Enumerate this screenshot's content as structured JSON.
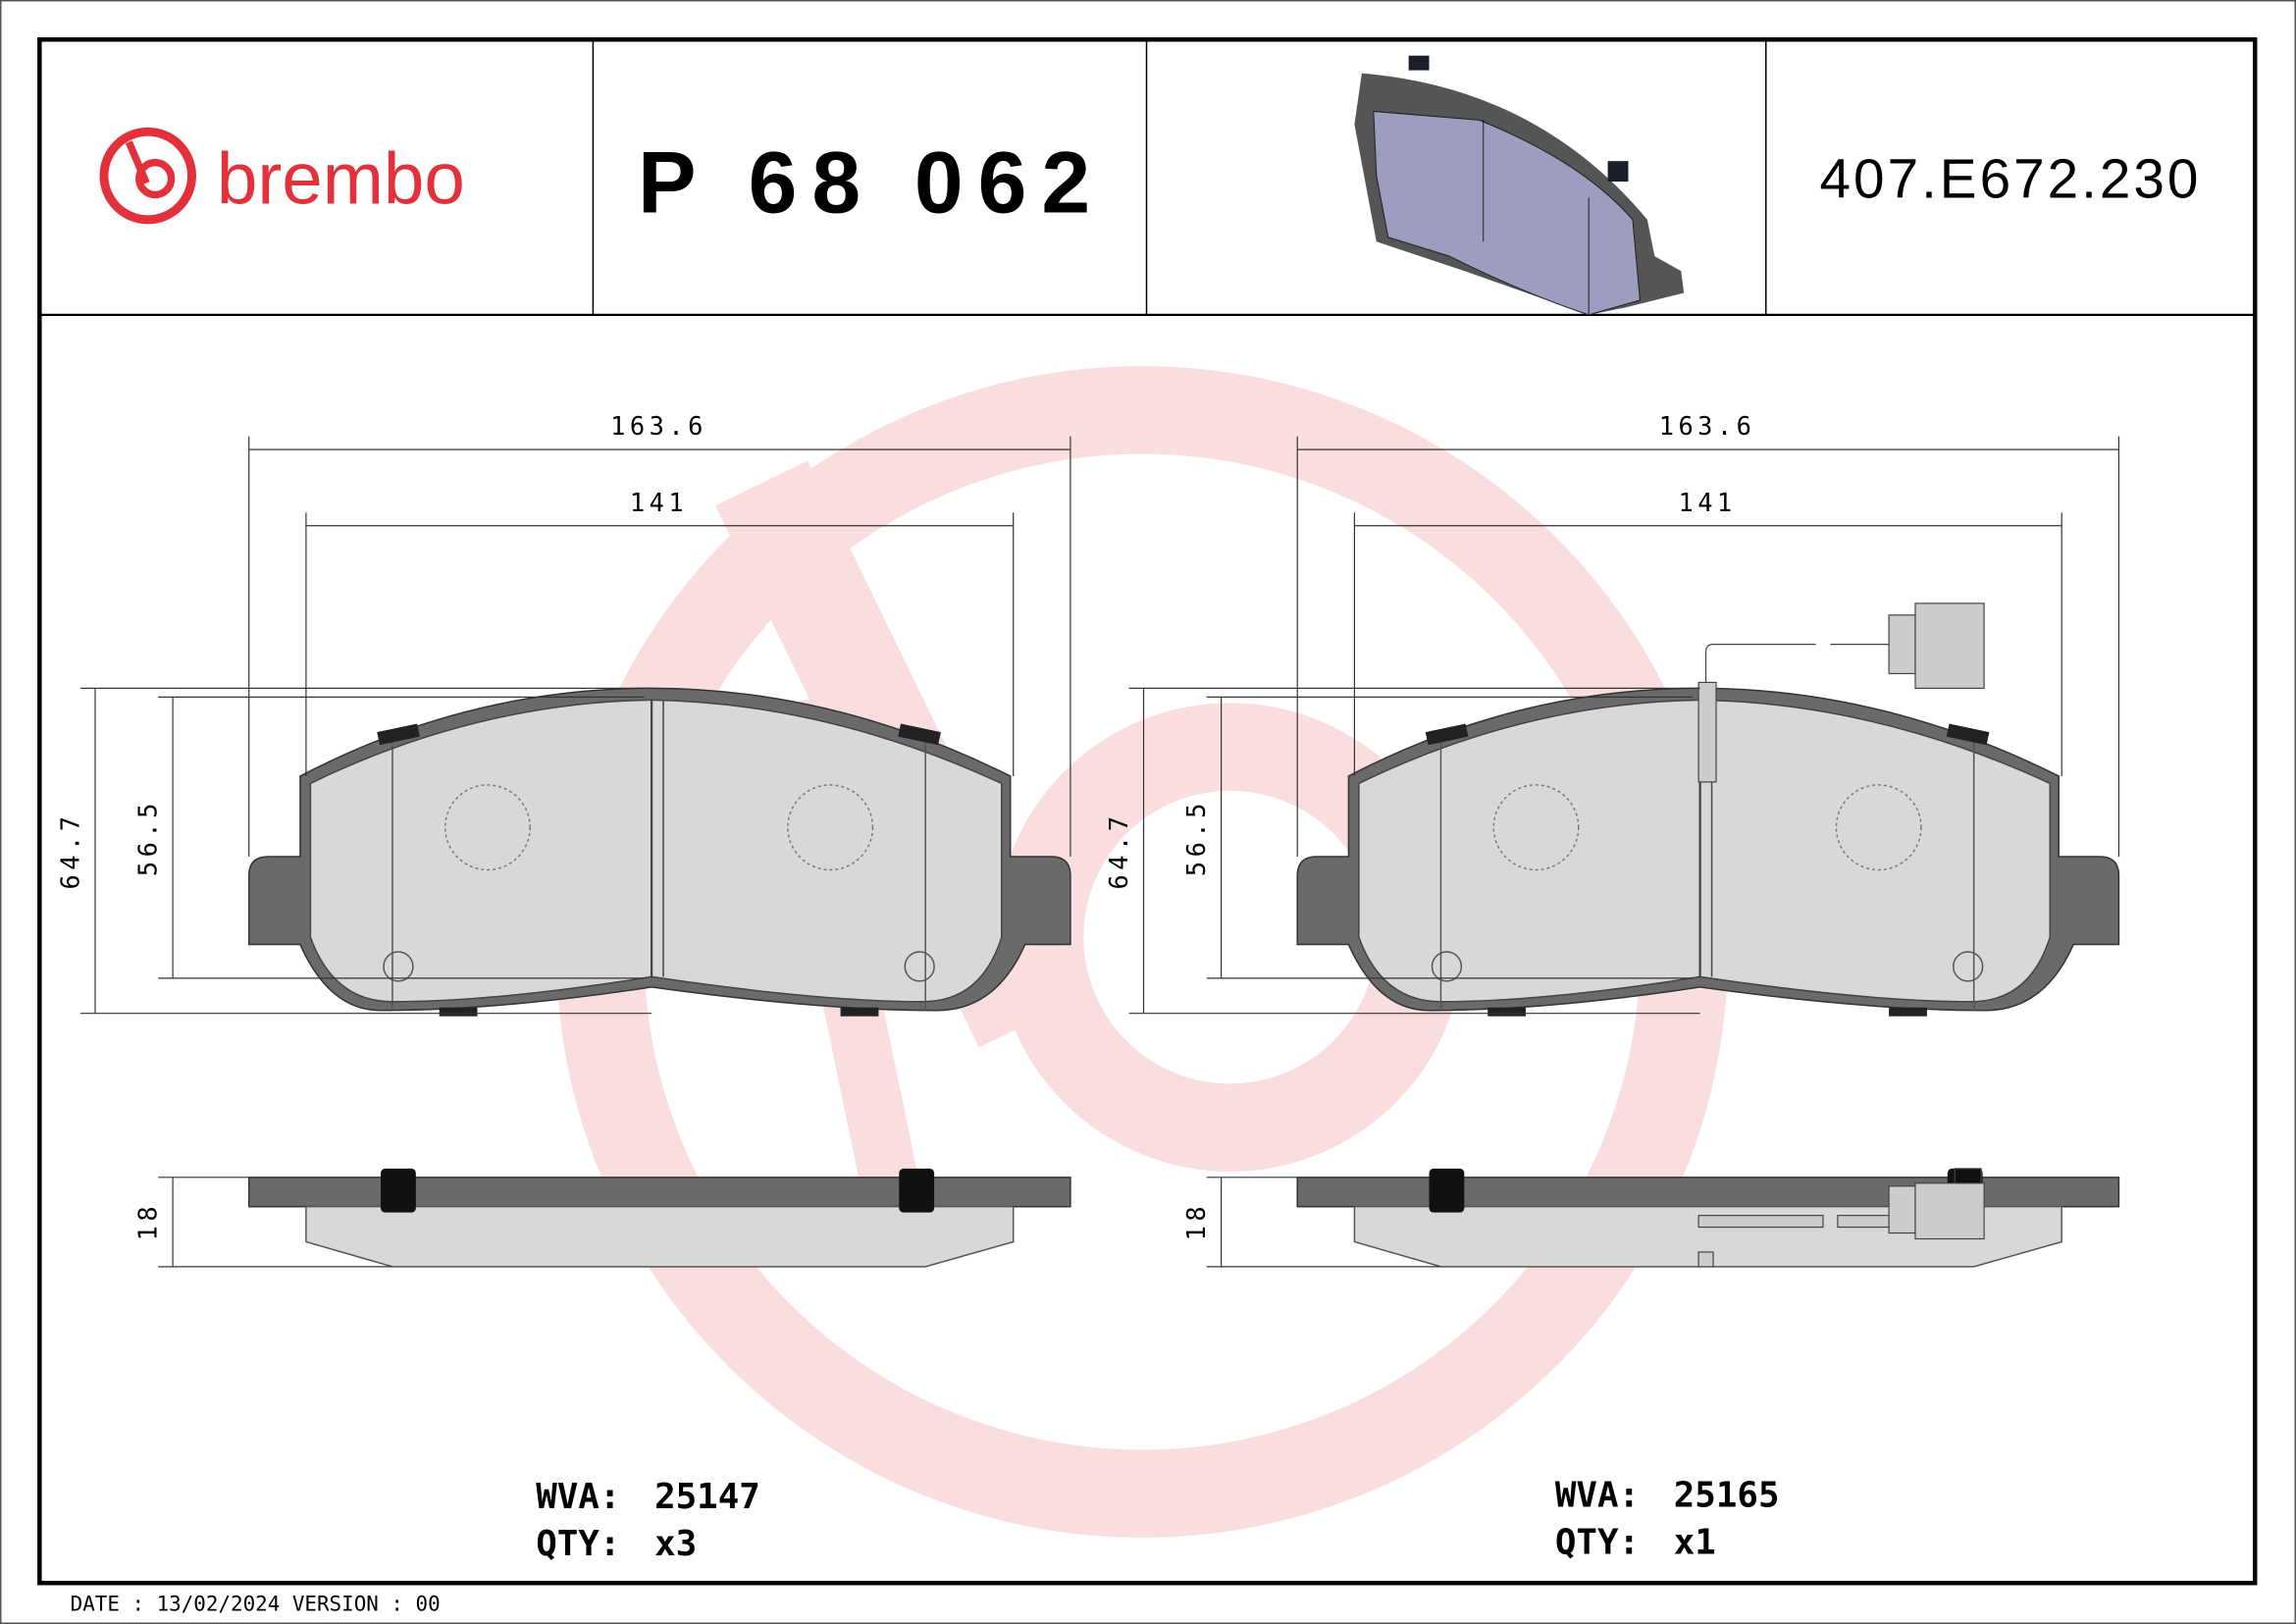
{
  "header": {
    "brand": "brembo",
    "part_number": "P 68 062",
    "reference": "407.E672.230",
    "brand_color": "#e2313a"
  },
  "left_pad": {
    "width_overall": "163.6",
    "width_friction": "141",
    "height_overall": "64.7",
    "height_friction": "56.5",
    "thickness": "18",
    "wva_label": "WVA:",
    "wva_value": "25147",
    "qty_label": "QTY:",
    "qty_value": "x3"
  },
  "right_pad": {
    "width_overall": "163.6",
    "width_friction": "141",
    "height_overall": "64.7",
    "height_friction": "56.5",
    "thickness": "18",
    "wva_label": "WVA:",
    "wva_value": "25165",
    "qty_label": "QTY:",
    "qty_value": "x1",
    "wear_sensor": true
  },
  "footer": {
    "date_text": "DATE : 13/02/2024 VERSION : 00"
  }
}
